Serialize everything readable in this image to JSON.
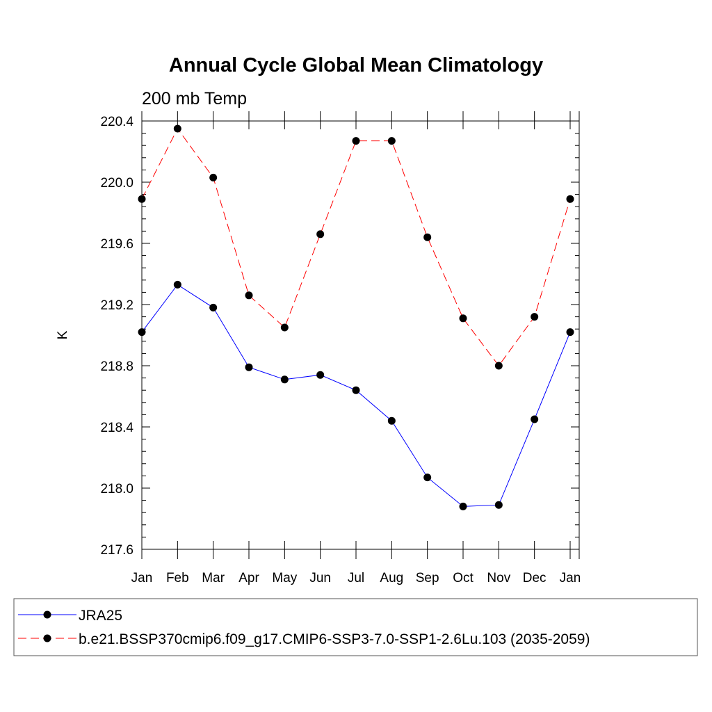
{
  "chart_data": {
    "type": "line",
    "title": "Annual Cycle Global Mean Climatology",
    "subtitle": "200 mb Temp",
    "ylabel": "K",
    "xlabel": "",
    "ylim": [
      217.6,
      220.4
    ],
    "yticks": [
      "217.6",
      "218.0",
      "218.4",
      "218.8",
      "219.2",
      "219.6",
      "220.0",
      "220.4"
    ],
    "categories": [
      "Jan",
      "Feb",
      "Mar",
      "Apr",
      "May",
      "Jun",
      "Jul",
      "Aug",
      "Sep",
      "Oct",
      "Nov",
      "Dec",
      "Jan"
    ],
    "legend_position": "bottom",
    "grid": false,
    "series": [
      {
        "name": "JRA25",
        "color": "#0000ff",
        "dashed": false,
        "values": [
          219.02,
          219.33,
          219.18,
          218.79,
          218.71,
          218.74,
          218.64,
          218.44,
          218.07,
          217.88,
          217.89,
          218.45,
          219.02
        ]
      },
      {
        "name": "b.e21.BSSP370cmip6.f09_g17.CMIP6-SSP3-7.0-SSP1-2.6Lu.103 (2035-2059)",
        "color": "#ff0000",
        "dashed": true,
        "values": [
          219.89,
          220.35,
          220.03,
          219.26,
          219.05,
          219.66,
          220.27,
          220.27,
          219.64,
          219.11,
          218.8,
          219.12,
          219.89
        ]
      }
    ]
  }
}
